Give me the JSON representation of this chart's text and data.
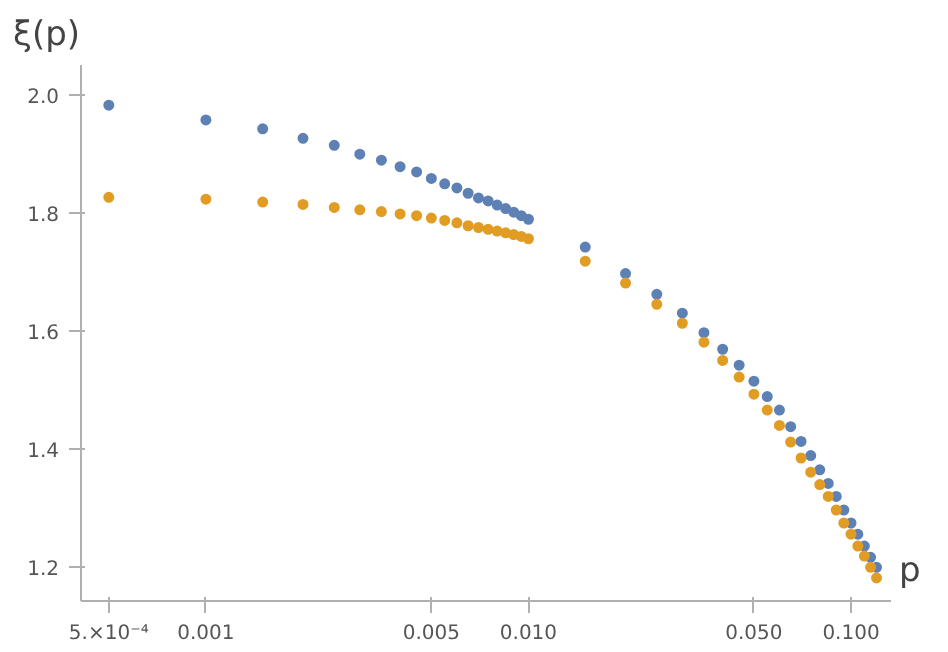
{
  "chart_data": {
    "type": "scatter",
    "ylabel": "ξ(p)",
    "xlabel": "p",
    "log": "x",
    "marker": "circle",
    "grid": false,
    "x": [
      0.0005,
      0.001,
      0.0015,
      0.002,
      0.0025,
      0.003,
      0.0035,
      0.004,
      0.0045,
      0.005,
      0.0055,
      0.006,
      0.0065,
      0.007,
      0.0075,
      0.008,
      0.0085,
      0.009,
      0.0095,
      0.01,
      0.015,
      0.02,
      0.025,
      0.03,
      0.035,
      0.04,
      0.045,
      0.05,
      0.055,
      0.06,
      0.065,
      0.07,
      0.075,
      0.08,
      0.085,
      0.09,
      0.095,
      0.1,
      0.105,
      0.11,
      0.115,
      0.12
    ],
    "series": [
      {
        "color": "#5e81b5",
        "values": [
          1.982,
          1.957,
          1.942,
          1.926,
          1.914,
          1.899,
          1.889,
          1.878,
          1.869,
          1.858,
          1.849,
          1.842,
          1.833,
          1.825,
          1.82,
          1.813,
          1.807,
          1.801,
          1.795,
          1.789,
          1.742,
          1.697,
          1.662,
          1.63,
          1.597,
          1.569,
          1.542,
          1.515,
          1.489,
          1.466,
          1.438,
          1.413,
          1.389,
          1.365,
          1.342,
          1.32,
          1.297,
          1.275,
          1.256,
          1.236,
          1.217,
          1.2
        ]
      },
      {
        "color": "#e19c24",
        "values": [
          1.826,
          1.823,
          1.818,
          1.814,
          1.809,
          1.805,
          1.802,
          1.798,
          1.795,
          1.791,
          1.787,
          1.783,
          1.778,
          1.775,
          1.772,
          1.769,
          1.766,
          1.763,
          1.76,
          1.756,
          1.718,
          1.681,
          1.645,
          1.613,
          1.581,
          1.55,
          1.522,
          1.493,
          1.466,
          1.44,
          1.412,
          1.385,
          1.361,
          1.34,
          1.32,
          1.297,
          1.275,
          1.256,
          1.236,
          1.219,
          1.2,
          1.182
        ]
      }
    ],
    "xlim": [
      0.00041,
      0.133
    ],
    "ylim": [
      1.143,
      2.05
    ],
    "xticks": [
      {
        "value": 0.0005,
        "label": "5.×10⁻⁴"
      },
      {
        "value": 0.001,
        "label": "0.001"
      },
      {
        "value": 0.005,
        "label": "0.005"
      },
      {
        "value": 0.01,
        "label": "0.010"
      },
      {
        "value": 0.05,
        "label": "0.050"
      },
      {
        "value": 0.1,
        "label": "0.100"
      }
    ],
    "yticks": [
      {
        "value": 1.2,
        "label": "1.2"
      },
      {
        "value": 1.4,
        "label": "1.4"
      },
      {
        "value": 1.6,
        "label": "1.6"
      },
      {
        "value": 1.8,
        "label": "1.8"
      },
      {
        "value": 2.0,
        "label": "2.0"
      }
    ]
  }
}
